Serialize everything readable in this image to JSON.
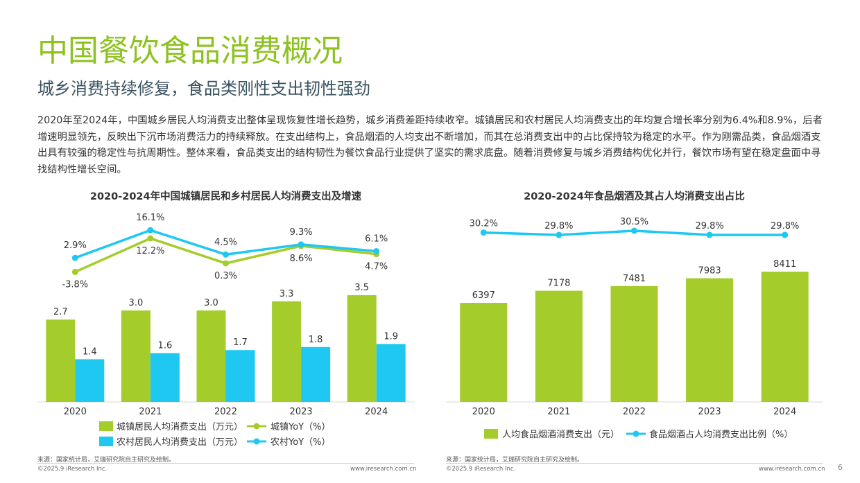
{
  "header": {
    "title": "中国餐饮食品消费概况",
    "subtitle": "城乡消费持续修复，食品类刚性支出韧性强劲",
    "paragraph": "2020年至2024年，中国城乡居民人均消费支出整体呈现恢复性增长趋势，城乡消费差距持续收窄。城镇居民和农村居民人均消费支出的年均复合增长率分别为6.4%和8.9%，后者增速明显领先，反映出下沉市场消费活力的持续释放。在支出结构上，食品烟酒的人均支出不断增加，而其在总消费支出中的占比保持较为稳定的水平。作为刚需品类，食品烟酒支出具有较强的稳定性与抗周期性。整体来看，食品类支出的结构韧性为餐饮食品行业提供了坚实的需求底盘。随着消费修复与城乡消费结构优化并行，餐饮市场有望在稳定盘面中寻找结构性增长空间。"
  },
  "colors": {
    "green": "#a4cc2a",
    "cyan": "#1ec8f0",
    "title_green": "#8dc21f"
  },
  "chart_data": [
    {
      "type": "bar",
      "title": "2020-2024年中国城镇居民和乡村居民人均消费支出及增速",
      "categories": [
        "2020",
        "2021",
        "2022",
        "2023",
        "2024"
      ],
      "series": [
        {
          "name": "城镇居民人均消费支出（万元）",
          "values": [
            2.7,
            3.0,
            3.0,
            3.3,
            3.5
          ],
          "labels": [
            "2.7",
            "3.0",
            "3.0",
            "3.3",
            "3.5"
          ]
        },
        {
          "name": "农村居民人均消费支出（万元）",
          "values": [
            1.4,
            1.6,
            1.7,
            1.8,
            1.9
          ],
          "labels": [
            "1.4",
            "1.6",
            "1.7",
            "1.8",
            "1.9"
          ]
        }
      ],
      "lines": [
        {
          "name": "城镇YoY（%）",
          "values": [
            -3.8,
            12.2,
            0.3,
            8.6,
            4.7
          ],
          "labels": [
            "-3.8%",
            "12.2%",
            "0.3%",
            "8.6%",
            "4.7%"
          ]
        },
        {
          "name": "农村YoY（%）",
          "values": [
            2.9,
            16.1,
            4.5,
            9.3,
            6.1
          ],
          "labels": [
            "2.9%",
            "16.1%",
            "4.5%",
            "9.3%",
            "6.1%"
          ]
        }
      ],
      "legend": "bottom",
      "source": "来源：国家统计局，艾瑞研究院自主研究及绘制。"
    },
    {
      "type": "bar",
      "title": "2020-2024年食品烟酒及其占人均消费支出占比",
      "categories": [
        "2020",
        "2021",
        "2022",
        "2023",
        "2024"
      ],
      "series": [
        {
          "name": "人均食品烟酒消费支出（元）",
          "values": [
            6397,
            7178,
            7481,
            7983,
            8411
          ],
          "labels": [
            "6397",
            "7178",
            "7481",
            "7983",
            "8411"
          ]
        }
      ],
      "lines": [
        {
          "name": "食品烟酒占人均消费支出比例（%）",
          "values": [
            30.2,
            29.8,
            30.5,
            29.8,
            29.8
          ],
          "labels": [
            "30.2%",
            "29.8%",
            "30.5%",
            "29.8%",
            "29.8%"
          ]
        }
      ],
      "legend": "bottom",
      "source": "来源：国家统计局，艾瑞研究院自主研究及绘制。"
    }
  ],
  "footer": {
    "copyright": "©2025.9 iResearch Inc.",
    "url": "www.iresearch.com.cn",
    "page": "6"
  }
}
